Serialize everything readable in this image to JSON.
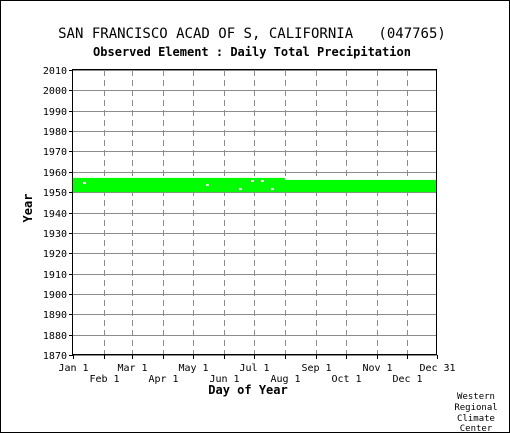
{
  "title": "SAN FRANCISCO ACAD OF S, CALIFORNIA   (047765)",
  "subtitle": "Observed Element : Daily Total Precipitation",
  "credit": [
    "Western",
    "Regional",
    "Climate",
    "Center"
  ],
  "chart_data": {
    "type": "bar",
    "title": "SAN FRANCISCO ACAD OF S, CALIFORNIA   (047765)",
    "subtitle": "Observed Element : Daily Total Precipitation",
    "xlabel": "Day of Year",
    "ylabel": "Year",
    "xlim": [
      1,
      365
    ],
    "ylim": [
      1870,
      2010
    ],
    "x_ticks": [
      {
        "label": "Jan 1",
        "day": 1,
        "row": "top"
      },
      {
        "label": "Feb 1",
        "day": 32,
        "row": "bottom"
      },
      {
        "label": "Mar 1",
        "day": 60,
        "row": "top"
      },
      {
        "label": "Apr 1",
        "day": 91,
        "row": "bottom"
      },
      {
        "label": "May 1",
        "day": 121,
        "row": "top"
      },
      {
        "label": "Jun 1",
        "day": 152,
        "row": "bottom"
      },
      {
        "label": "Jul 1",
        "day": 182,
        "row": "top"
      },
      {
        "label": "Aug 1",
        "day": 213,
        "row": "bottom"
      },
      {
        "label": "Sep 1",
        "day": 244,
        "row": "top"
      },
      {
        "label": "Oct 1",
        "day": 274,
        "row": "bottom"
      },
      {
        "label": "Nov 1",
        "day": 305,
        "row": "top"
      },
      {
        "label": "Dec 1",
        "day": 335,
        "row": "bottom"
      },
      {
        "label": "Dec 31",
        "day": 365,
        "row": "top"
      }
    ],
    "y_ticks": [
      1870,
      1880,
      1890,
      1900,
      1910,
      1920,
      1930,
      1940,
      1950,
      1960,
      1970,
      1980,
      1990,
      2000,
      2010
    ],
    "grid": true,
    "series": [
      {
        "color": "#00ff00",
        "ranges": [
          {
            "day_start": 1,
            "day_end": 213,
            "year_start": 1950,
            "year_end": 1957
          },
          {
            "day_start": 213,
            "day_end": 235,
            "year_start": 1950,
            "year_end": 1956
          },
          {
            "day_start": 235,
            "day_end": 365,
            "year_start": 1950,
            "year_end": 1956
          }
        ],
        "gaps": [
          {
            "day": 12,
            "year": 1954
          },
          {
            "day": 135,
            "year": 1953
          },
          {
            "day": 168,
            "year": 1951
          },
          {
            "day": 180,
            "year": 1955
          },
          {
            "day": 190,
            "year": 1955
          },
          {
            "day": 200,
            "year": 1951
          }
        ]
      }
    ]
  }
}
